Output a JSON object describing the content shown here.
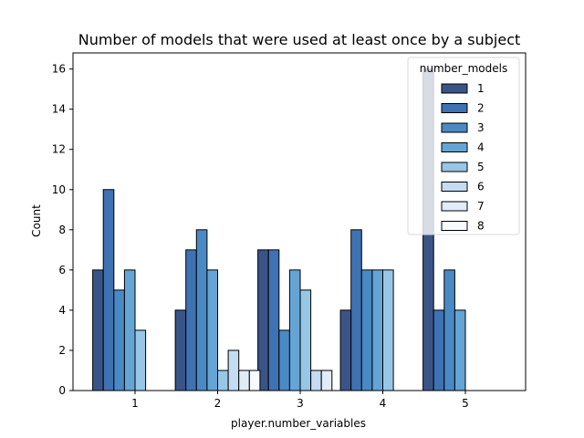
{
  "chart_data": {
    "type": "bar",
    "title": "Number of models that were used at least once by a subject",
    "xlabel": "player.number_variables",
    "ylabel": "Count",
    "categories": [
      "1",
      "2",
      "3",
      "4",
      "5"
    ],
    "ylim": [
      0,
      16.8
    ],
    "yticks": [
      0,
      2,
      4,
      6,
      8,
      10,
      12,
      14,
      16
    ],
    "legend": {
      "title": "number_models",
      "placement": "top-right"
    },
    "series": [
      {
        "name": "1",
        "color": "#3a5488",
        "values": [
          6,
          4,
          7,
          4,
          16
        ]
      },
      {
        "name": "2",
        "color": "#3f72b2",
        "values": [
          10,
          7,
          7,
          8,
          4
        ]
      },
      {
        "name": "3",
        "color": "#4a8ac4",
        "values": [
          5,
          8,
          3,
          6,
          6
        ]
      },
      {
        "name": "4",
        "color": "#65a5d6",
        "values": [
          6,
          6,
          6,
          6,
          4
        ]
      },
      {
        "name": "5",
        "color": "#98c6e7",
        "values": [
          3,
          1,
          5,
          6,
          0
        ]
      },
      {
        "name": "6",
        "color": "#c3dcf1",
        "values": [
          0,
          2,
          1,
          0,
          0
        ]
      },
      {
        "name": "7",
        "color": "#e0ecf8",
        "values": [
          0,
          1,
          1,
          0,
          0
        ]
      },
      {
        "name": "8",
        "color": "#f7fbff",
        "values": [
          0,
          1,
          0,
          0,
          0
        ]
      }
    ]
  }
}
